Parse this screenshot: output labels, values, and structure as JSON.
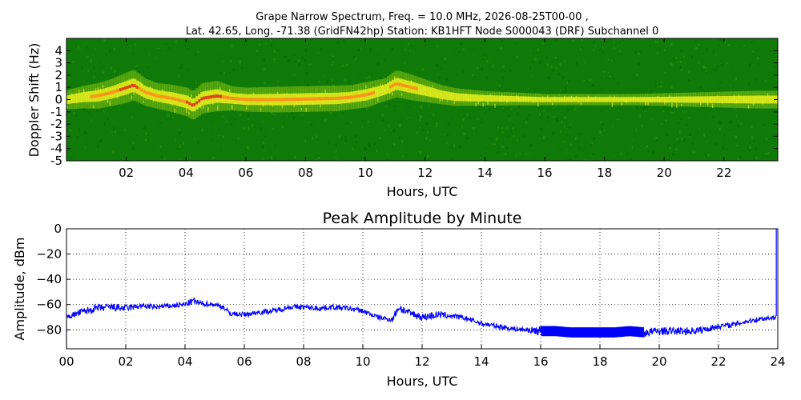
{
  "chart_data": [
    {
      "type": "heatmap",
      "title_line1": "Grape Narrow Spectrum, Freq. = 10.0 MHz, 2026-08-25T00-00 ,",
      "title_line2": "Lat.  42.65, Long. -71.38 (GridFN42hp) Station: KB1HFT Node S000043 (DRF) Subchannel 0",
      "xlabel": "Hours, UTC",
      "ylabel": "Doppler Shift (Hz)",
      "xlim": [
        0,
        23.8
      ],
      "ylim": [
        -5,
        5
      ],
      "x_ticks": [
        {
          "v": 2,
          "label": "02"
        },
        {
          "v": 4,
          "label": "04"
        },
        {
          "v": 6,
          "label": "06"
        },
        {
          "v": 8,
          "label": "08"
        },
        {
          "v": 10,
          "label": "10"
        },
        {
          "v": 12,
          "label": "12"
        },
        {
          "v": 14,
          "label": "14"
        },
        {
          "v": 16,
          "label": "16"
        },
        {
          "v": 18,
          "label": "18"
        },
        {
          "v": 20,
          "label": "20"
        },
        {
          "v": 22,
          "label": "22"
        }
      ],
      "y_ticks": [
        {
          "v": 4,
          "label": "4"
        },
        {
          "v": 3,
          "label": "3"
        },
        {
          "v": 2,
          "label": "2"
        },
        {
          "v": 1,
          "label": "1"
        },
        {
          "v": 0,
          "label": "0"
        },
        {
          "v": -1,
          "label": "-1"
        },
        {
          "v": -2,
          "label": "-2"
        },
        {
          "v": -3,
          "label": "-3"
        },
        {
          "v": -4,
          "label": "-4"
        },
        {
          "v": -5,
          "label": "-5"
        }
      ],
      "background_color": "#0f7a07",
      "trace_colors": [
        "#7fbf12",
        "#e9ef1c",
        "#ff8a1a",
        "#e0301c"
      ],
      "doppler_trace": {
        "hours": [
          0.0,
          0.5,
          1.0,
          1.5,
          2.0,
          2.2,
          2.6,
          3.0,
          3.5,
          4.0,
          4.2,
          4.5,
          5.0,
          5.5,
          6.0,
          7.0,
          8.0,
          9.0,
          9.5,
          10.0,
          10.3,
          10.6,
          11.0,
          11.5,
          12.0,
          12.5,
          13.0,
          14.0,
          15.0,
          16.0,
          17.0,
          18.0,
          19.0,
          20.0,
          21.0,
          22.0,
          23.0,
          23.8
        ],
        "doppler": [
          0.0,
          0.2,
          0.3,
          0.6,
          1.0,
          1.2,
          0.6,
          0.3,
          0.1,
          -0.2,
          -0.5,
          0.1,
          0.3,
          0.1,
          0.0,
          0.0,
          0.05,
          0.1,
          0.2,
          0.4,
          0.6,
          0.8,
          1.3,
          1.0,
          0.7,
          0.4,
          0.2,
          0.1,
          0.05,
          0.0,
          0.0,
          0.0,
          0.0,
          0.0,
          0.0,
          0.0,
          0.0,
          0.0
        ],
        "strength": [
          0.6,
          0.7,
          0.8,
          0.85,
          0.95,
          0.95,
          0.85,
          0.8,
          0.85,
          0.9,
          0.9,
          0.95,
          0.95,
          0.75,
          0.75,
          0.8,
          0.8,
          0.8,
          0.75,
          0.8,
          0.75,
          0.7,
          0.85,
          0.8,
          0.7,
          0.6,
          0.55,
          0.45,
          0.4,
          0.35,
          0.35,
          0.35,
          0.35,
          0.4,
          0.45,
          0.5,
          0.55,
          0.55
        ]
      }
    },
    {
      "type": "line",
      "title": "Peak Amplitude by Minute",
      "xlabel": "Hours, UTC",
      "ylabel": "Amplitude, dBm",
      "xlim": [
        0,
        24
      ],
      "ylim": [
        -95,
        0
      ],
      "grid": true,
      "line_color": "#0000ff",
      "x_ticks": [
        {
          "v": 0,
          "label": "00"
        },
        {
          "v": 2,
          "label": "02"
        },
        {
          "v": 4,
          "label": "04"
        },
        {
          "v": 6,
          "label": "06"
        },
        {
          "v": 8,
          "label": "08"
        },
        {
          "v": 10,
          "label": "10"
        },
        {
          "v": 12,
          "label": "12"
        },
        {
          "v": 14,
          "label": "14"
        },
        {
          "v": 16,
          "label": "16"
        },
        {
          "v": 18,
          "label": "18"
        },
        {
          "v": 20,
          "label": "20"
        },
        {
          "v": 22,
          "label": "22"
        },
        {
          "v": 24,
          "label": "24"
        }
      ],
      "y_ticks": [
        {
          "v": 0,
          "label": "0"
        },
        {
          "v": -20,
          "label": "−20"
        },
        {
          "v": -40,
          "label": "−40"
        },
        {
          "v": -60,
          "label": "−60"
        },
        {
          "v": -80,
          "label": "−80"
        }
      ],
      "series": [
        {
          "x": [
            0.0,
            0.5,
            1.0,
            1.5,
            2.0,
            2.5,
            3.0,
            3.5,
            4.0,
            4.3,
            4.5,
            5.0,
            5.3,
            5.5,
            6.0,
            6.5,
            7.0,
            7.5,
            8.0,
            8.5,
            9.0,
            9.5,
            10.0,
            10.5,
            11.0,
            11.2,
            11.5,
            12.0,
            12.5,
            13.0,
            13.5,
            14.0,
            14.5,
            15.0,
            15.5,
            16.0,
            16.5,
            17.0,
            17.5,
            18.0,
            18.5,
            19.0,
            19.5,
            20.0,
            20.5,
            21.0,
            21.5,
            22.0,
            22.5,
            23.0,
            23.5,
            23.95
          ],
          "y": [
            -70,
            -66,
            -63,
            -62,
            -63,
            -61,
            -62,
            -61,
            -60,
            -57,
            -59,
            -60,
            -62,
            -67,
            -68,
            -66,
            -65,
            -62,
            -62,
            -63,
            -62,
            -63,
            -65,
            -70,
            -72,
            -62,
            -66,
            -70,
            -68,
            -69,
            -71,
            -75,
            -77,
            -79,
            -80,
            -81,
            -81,
            -82,
            -82,
            -82,
            -82,
            -81,
            -82,
            -81,
            -81,
            -81,
            -80,
            -77,
            -76,
            -73,
            -71,
            -70
          ],
          "noise_amplitude": [
            2,
            3,
            3,
            3,
            3,
            2,
            2,
            2,
            2,
            3,
            2,
            2,
            2,
            2,
            2,
            2,
            2,
            2,
            2,
            2,
            2,
            2,
            2,
            2,
            2,
            4,
            3,
            3,
            3,
            2,
            2,
            2,
            2,
            2,
            2,
            4,
            4,
            4,
            4,
            4,
            4,
            4,
            4,
            3,
            3,
            3,
            3,
            2,
            2,
            2,
            2,
            2
          ]
        }
      ]
    }
  ]
}
